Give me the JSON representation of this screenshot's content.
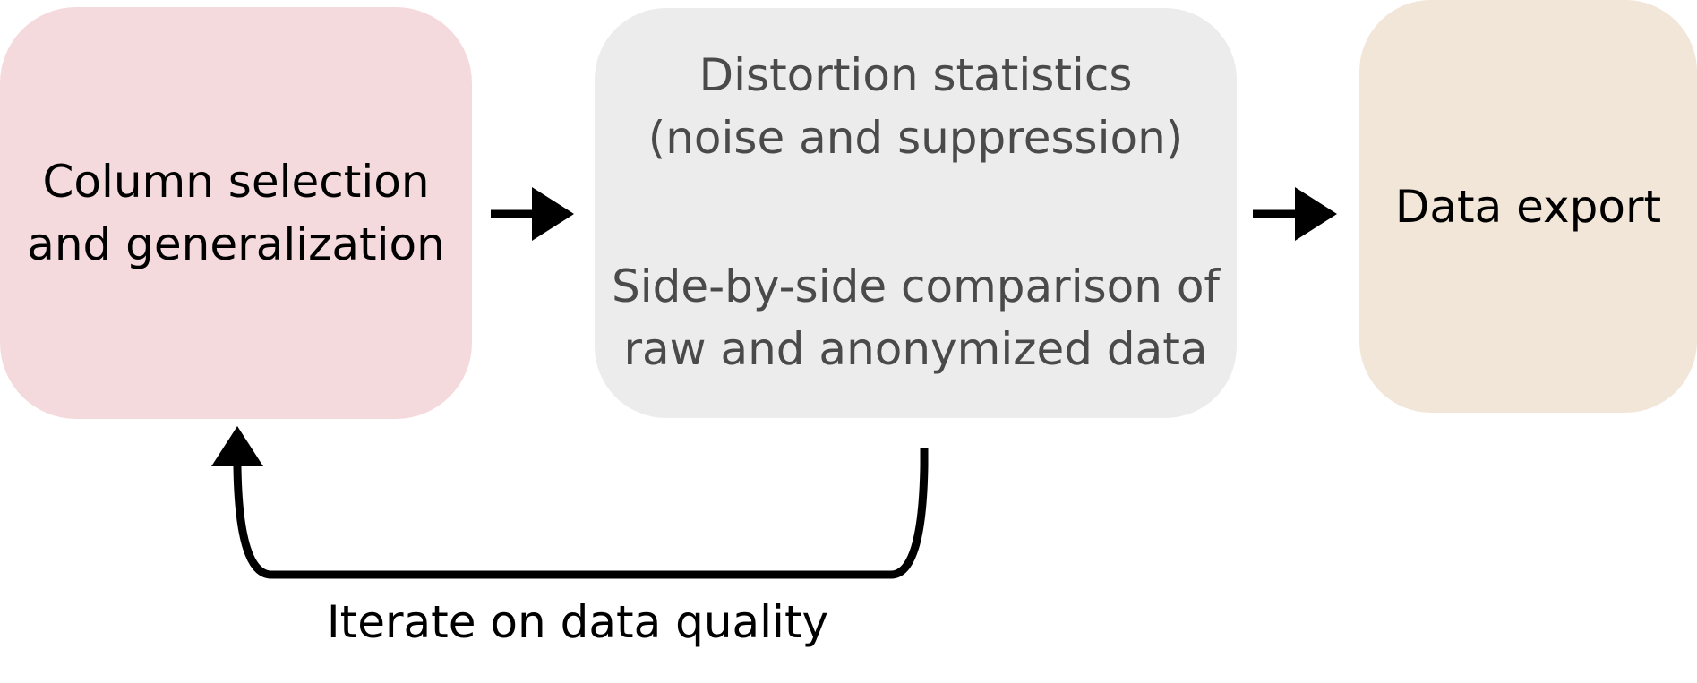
{
  "boxes": {
    "column_selection": {
      "lines": [
        "Column selection",
        "and generalization"
      ],
      "color": "#f5dadd"
    },
    "distortion": {
      "group1": [
        "Distortion statistics",
        "(noise and suppression)"
      ],
      "group2": [
        "Side-by-side comparison of",
        "raw and anonymized data"
      ],
      "color": "#ececec"
    },
    "export": {
      "lines": [
        "Data export"
      ],
      "color": "#f1e6d7"
    }
  },
  "loop": {
    "label": "Iterate on data quality"
  },
  "arrow_color": "#000000"
}
